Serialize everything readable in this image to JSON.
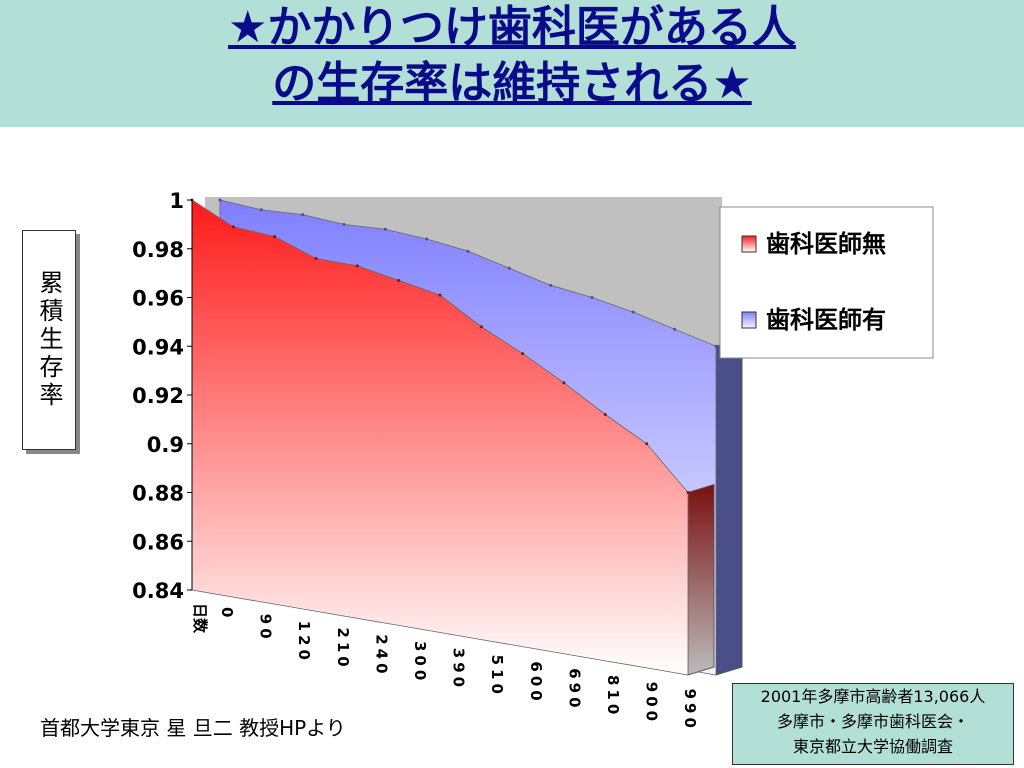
{
  "chart_data": {
    "type": "area3d",
    "title": [
      "★かかりつけ歯科医がある人",
      "の生存率は維持される★"
    ],
    "y_label": "累積生存率",
    "x_label": "日数",
    "categories": [
      "0",
      "90",
      "120",
      "210",
      "240",
      "300",
      "390",
      "510",
      "600",
      "690",
      "810",
      "900",
      "990"
    ],
    "series": [
      {
        "name": "歯科医師無",
        "color": "#ff1a1a",
        "values": [
          1.0,
          0.989,
          0.985,
          0.976,
          0.973,
          0.967,
          0.961,
          0.948,
          0.937,
          0.925,
          0.912,
          0.9,
          0.88
        ]
      },
      {
        "name": "歯科医師有",
        "color": "#7f7fff",
        "values": [
          1.0,
          0.996,
          0.994,
          0.99,
          0.988,
          0.984,
          0.979,
          0.972,
          0.965,
          0.96,
          0.954,
          0.947,
          0.94
        ]
      }
    ],
    "ylim": [
      0.84,
      1
    ],
    "yticks": [
      0.84,
      0.86,
      0.88,
      0.9,
      0.92,
      0.94,
      0.96,
      0.98,
      1
    ],
    "legend": "right",
    "annotations": {
      "credit": "首都大学東京 星 旦二 教授HPより",
      "source": [
        "2001年多摩市高齢者13,066人",
        "多摩市・多摩市歯科医会・",
        "東京都立大学協働調査"
      ]
    }
  }
}
